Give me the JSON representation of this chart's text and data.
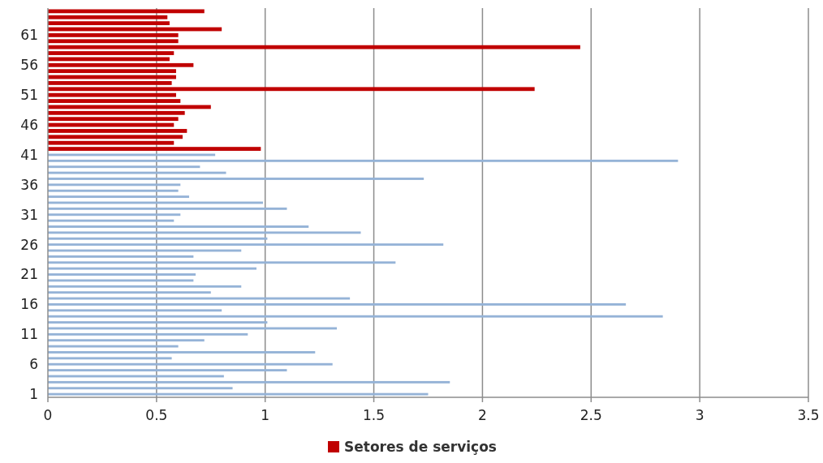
{
  "chart_data": {
    "type": "bar",
    "orientation": "horizontal",
    "categories": [
      null,
      null,
      null,
      null,
      "61",
      null,
      null,
      null,
      null,
      "56",
      null,
      null,
      null,
      null,
      "51",
      null,
      null,
      null,
      null,
      "46",
      null,
      null,
      null,
      null,
      "41",
      null,
      null,
      null,
      null,
      "36",
      null,
      null,
      null,
      null,
      "31",
      null,
      null,
      null,
      null,
      "26",
      null,
      null,
      null,
      null,
      "21",
      null,
      null,
      null,
      null,
      "16",
      null,
      null,
      null,
      null,
      "11",
      null,
      null,
      null,
      null,
      "6",
      null,
      null,
      null,
      null,
      "1"
    ],
    "series": [
      {
        "color": "#95b3d7",
        "values": [
          null,
          null,
          null,
          null,
          null,
          null,
          null,
          null,
          null,
          null,
          null,
          null,
          null,
          null,
          null,
          null,
          null,
          null,
          null,
          null,
          null,
          null,
          null,
          null,
          0.77,
          2.9,
          0.7,
          0.82,
          1.73,
          0.61,
          0.6,
          0.65,
          0.99,
          1.1,
          0.61,
          0.58,
          1.2,
          1.44,
          1.01,
          1.82,
          0.89,
          0.67,
          1.6,
          0.96,
          0.68,
          0.67,
          0.89,
          0.75,
          1.39,
          2.66,
          0.8,
          2.83,
          1.01,
          1.33,
          0.92,
          0.72,
          0.6,
          1.23,
          0.57,
          1.31,
          1.1,
          0.81,
          1.85,
          0.85,
          1.75
        ]
      },
      {
        "name": "Setores de serviços",
        "color": "#c00000",
        "values": [
          0.72,
          0.55,
          0.56,
          0.8,
          0.6,
          0.6,
          2.45,
          0.58,
          0.56,
          0.67,
          0.59,
          0.59,
          0.57,
          2.24,
          0.59,
          0.61,
          0.75,
          0.63,
          0.6,
          0.58,
          0.64,
          0.62,
          0.58,
          0.98,
          null,
          null,
          null,
          null,
          null,
          null,
          null,
          null,
          null,
          null,
          null,
          null,
          null,
          null,
          null,
          null,
          null,
          null,
          null,
          null,
          null,
          null,
          null,
          null,
          null,
          null,
          null,
          null,
          null,
          null,
          null,
          null,
          null,
          null,
          null,
          null,
          null,
          null,
          null,
          null,
          null
        ]
      }
    ],
    "xlim": [
      0,
      3.5
    ],
    "xticks": [
      0,
      0.5,
      1,
      1.5,
      2,
      2.5,
      3,
      3.5
    ],
    "grid": "x",
    "legend": "bottom"
  }
}
